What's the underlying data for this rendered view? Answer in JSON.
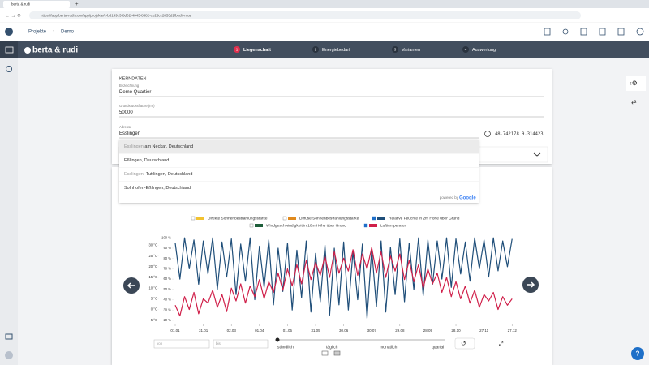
{
  "browser": {
    "tab_title": "berta & rudi",
    "url": "https://app.berta-rudi.com/app/projekte/c-b5199c3-8d02-4043-8582-cb2dcc2853d1/bedit-mue"
  },
  "header": {
    "breadcrumbs": [
      "Projekte",
      "Demo"
    ]
  },
  "nav": {
    "brand": "berta & rudi",
    "steps": [
      {
        "number": "1",
        "label": "Liegenschaft",
        "active": true
      },
      {
        "number": "2",
        "label": "Energiebedarf",
        "active": false
      },
      {
        "number": "3",
        "label": "Varianten",
        "active": false
      },
      {
        "number": "4",
        "label": "Auswertung",
        "active": false
      }
    ]
  },
  "form": {
    "section": "KERNDATEN",
    "fields": [
      {
        "label": "Bezeichnung",
        "value": "Demo Quartier"
      },
      {
        "label": "Grundstücksfläche (m²)",
        "value": "50000"
      },
      {
        "label": "Adresse",
        "value": "Esslingen"
      }
    ],
    "coordinates": "48.742178 9.314423"
  },
  "autocomplete": {
    "suggestions": [
      {
        "match": "Esslingen",
        "text": " am Neckar, Deutschland"
      },
      {
        "text": "Eßlingen, Deutschland"
      },
      {
        "match": "Esslingen",
        "text": ", Tuttlingen, Deutschland"
      },
      {
        "text": "Solnhofen-Eßlingen, Deutschland"
      }
    ],
    "powered_by": "powered by",
    "provider": "Google"
  },
  "chart_data": {
    "type": "line",
    "xlim": [
      0,
      365
    ],
    "xticks": [
      {
        "value": 0,
        "label": "01.01"
      },
      {
        "value": 30,
        "label": "31.01"
      },
      {
        "value": 60,
        "label": "02.03"
      },
      {
        "value": 90,
        "label": "01.04"
      },
      {
        "value": 120,
        "label": "01.05"
      },
      {
        "value": 150,
        "label": "31.05"
      },
      {
        "value": 180,
        "label": "30.06"
      },
      {
        "value": 210,
        "label": "30.07"
      },
      {
        "value": 240,
        "label": "29.08"
      },
      {
        "value": 270,
        "label": "28.09"
      },
      {
        "value": 300,
        "label": "28.10"
      },
      {
        "value": 330,
        "label": "27.11"
      },
      {
        "value": 360,
        "label": "27.12"
      }
    ],
    "ylim": [
      -7,
      34
    ],
    "yticks": [
      {
        "value": -5,
        "label": "-5 °C"
      },
      {
        "value": 0,
        "label": "0 °C"
      },
      {
        "value": 5,
        "label": "5 °C"
      },
      {
        "value": 10,
        "label": "10 °C"
      },
      {
        "value": 15,
        "label": "15 °C"
      },
      {
        "value": 20,
        "label": "20 °C"
      },
      {
        "value": 25,
        "label": "25 °C"
      },
      {
        "value": 30,
        "label": "30 °C"
      }
    ],
    "y2lim": [
      16,
      101
    ],
    "y2ticks": [
      {
        "value": 20,
        "label": "20 %"
      },
      {
        "value": 30,
        "label": "30 %"
      },
      {
        "value": 40,
        "label": "40 %"
      },
      {
        "value": 50,
        "label": "50 %"
      },
      {
        "value": 60,
        "label": "60 %"
      },
      {
        "value": 70,
        "label": "70 %"
      },
      {
        "value": 80,
        "label": "80 %"
      },
      {
        "value": 90,
        "label": "90 %"
      },
      {
        "value": 100,
        "label": "100 %"
      }
    ],
    "grid": false,
    "x": [
      0,
      5,
      10,
      15,
      20,
      25,
      30,
      35,
      40,
      45,
      50,
      55,
      60,
      65,
      70,
      75,
      80,
      85,
      90,
      95,
      100,
      105,
      110,
      115,
      120,
      125,
      130,
      135,
      140,
      145,
      150,
      155,
      160,
      165,
      170,
      175,
      180,
      185,
      190,
      195,
      200,
      205,
      210,
      215,
      220,
      225,
      230,
      235,
      240,
      245,
      250,
      255,
      260,
      265,
      270,
      275,
      280,
      285,
      290,
      295,
      300,
      305,
      310,
      315,
      320,
      325,
      330,
      335,
      340,
      345,
      350,
      355,
      360
    ],
    "series": [
      {
        "name": "Direkte Sonnenbestrahlungsstärke",
        "color": "#f2c230",
        "visible": false
      },
      {
        "name": "Diffuse Sonnenbestrahlungsstärke",
        "color": "#e08a1e",
        "visible": false
      },
      {
        "name": "Relative Feuchte in 2m Höhe über Grund",
        "color": "#1f4e79",
        "visible": true,
        "axis": "y2",
        "values": [
          95,
          60,
          100,
          70,
          98,
          55,
          97,
          65,
          100,
          50,
          96,
          62,
          99,
          45,
          94,
          58,
          100,
          40,
          92,
          52,
          98,
          35,
          90,
          48,
          95,
          30,
          88,
          42,
          97,
          28,
          85,
          38,
          93,
          25,
          90,
          35,
          96,
          30,
          87,
          40,
          94,
          22,
          89,
          33,
          97,
          28,
          91,
          45,
          99,
          38,
          95,
          50,
          100,
          44,
          98,
          55,
          97,
          60,
          100,
          52,
          99,
          65,
          96,
          58,
          100,
          70,
          98,
          62,
          100,
          68,
          97,
          72,
          99
        ]
      },
      {
        "name": "Windgeschwindigkeit in 10m Höhe über Grund",
        "color": "#1e5e3a",
        "visible": false
      },
      {
        "name": "Lufttemperatur",
        "color": "#d0204a",
        "visible": true,
        "values": [
          2,
          -3,
          6,
          0,
          8,
          -2,
          5,
          3,
          9,
          1,
          7,
          -1,
          10,
          4,
          12,
          3,
          11,
          6,
          14,
          5,
          13,
          8,
          17,
          9,
          19,
          11,
          21,
          12,
          23,
          14,
          22,
          16,
          25,
          15,
          27,
          17,
          24,
          18,
          28,
          16,
          26,
          19,
          29,
          17,
          27,
          15,
          25,
          18,
          26,
          14,
          23,
          13,
          21,
          10,
          19,
          12,
          17,
          8,
          15,
          6,
          13,
          5,
          11,
          3,
          9,
          1,
          7,
          4,
          8,
          0,
          6,
          2,
          5
        ]
      }
    ]
  },
  "controls": {
    "from": "von",
    "to": "bis",
    "resolutions": [
      "stündlich",
      "täglich",
      "monatlich",
      "quartal"
    ]
  },
  "help": "?"
}
